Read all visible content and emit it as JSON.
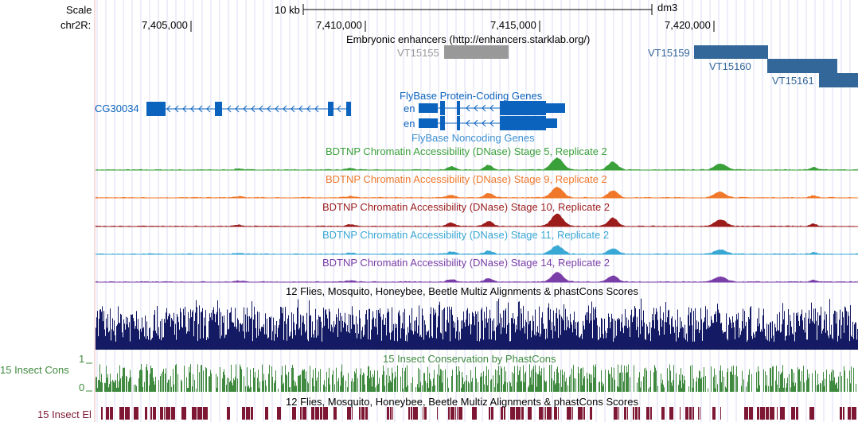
{
  "ruler": {
    "scale_label": "Scale",
    "chrom_label": "chr2R:",
    "scale_bar_label": "10 kb",
    "assembly": "dm3",
    "ticks": [
      "7,405,000",
      "7,410,000",
      "7,415,000",
      "7,420,000"
    ]
  },
  "tracks": {
    "enhancers": {
      "title": "Embryonic enhancers (http://enhancers.starklab.org/)",
      "items": [
        {
          "name": "VT15155",
          "color": "#999999"
        },
        {
          "name": "VT15159",
          "color": "#336699"
        },
        {
          "name": "VT15160",
          "color": "#336699"
        },
        {
          "name": "VT15161",
          "color": "#336699"
        }
      ]
    },
    "protein_coding": {
      "title": "FlyBase Protein-Coding Genes",
      "genes": [
        "CG30034",
        "en",
        "en"
      ],
      "color": "#0b63bd"
    },
    "noncoding": {
      "title": "FlyBase Noncoding Genes",
      "color": "#3d8fd1"
    },
    "dnase": [
      {
        "title": "BDTNP Chromatin Accessibility (DNase) Stage 5, Replicate 2",
        "color": "#3aa03a"
      },
      {
        "title": "BDTNP Chromatin Accessibility (DNase) Stage 9, Replicate 2",
        "color": "#f0782a"
      },
      {
        "title": "BDTNP Chromatin Accessibility (DNase) Stage 10, Replicate 2",
        "color": "#9c1c1c"
      },
      {
        "title": "BDTNP Chromatin Accessibility (DNase) Stage 11, Replicate 2",
        "color": "#3aa8d4"
      },
      {
        "title": "BDTNP Chromatin Accessibility (DNase) Stage 14, Replicate 2",
        "color": "#7a3ea8"
      }
    ],
    "multiz": {
      "title": "12 Flies, Mosquito, Honeybee, Beetle Multiz Alignments & phastCons Scores",
      "color": "#141a63"
    },
    "insect_cons": {
      "title": "15 Insect Conservation by PhastCons",
      "side_label": "15 Insect Cons",
      "axis_max": "1",
      "axis_min": "0",
      "color": "#3f8a3f"
    },
    "insect_el": {
      "title": "12 Flies, Mosquito, Honeybee, Beetle Multiz Alignments & phastCons Scores",
      "side_label": "15 Insect El",
      "color": "#7d1733"
    }
  }
}
